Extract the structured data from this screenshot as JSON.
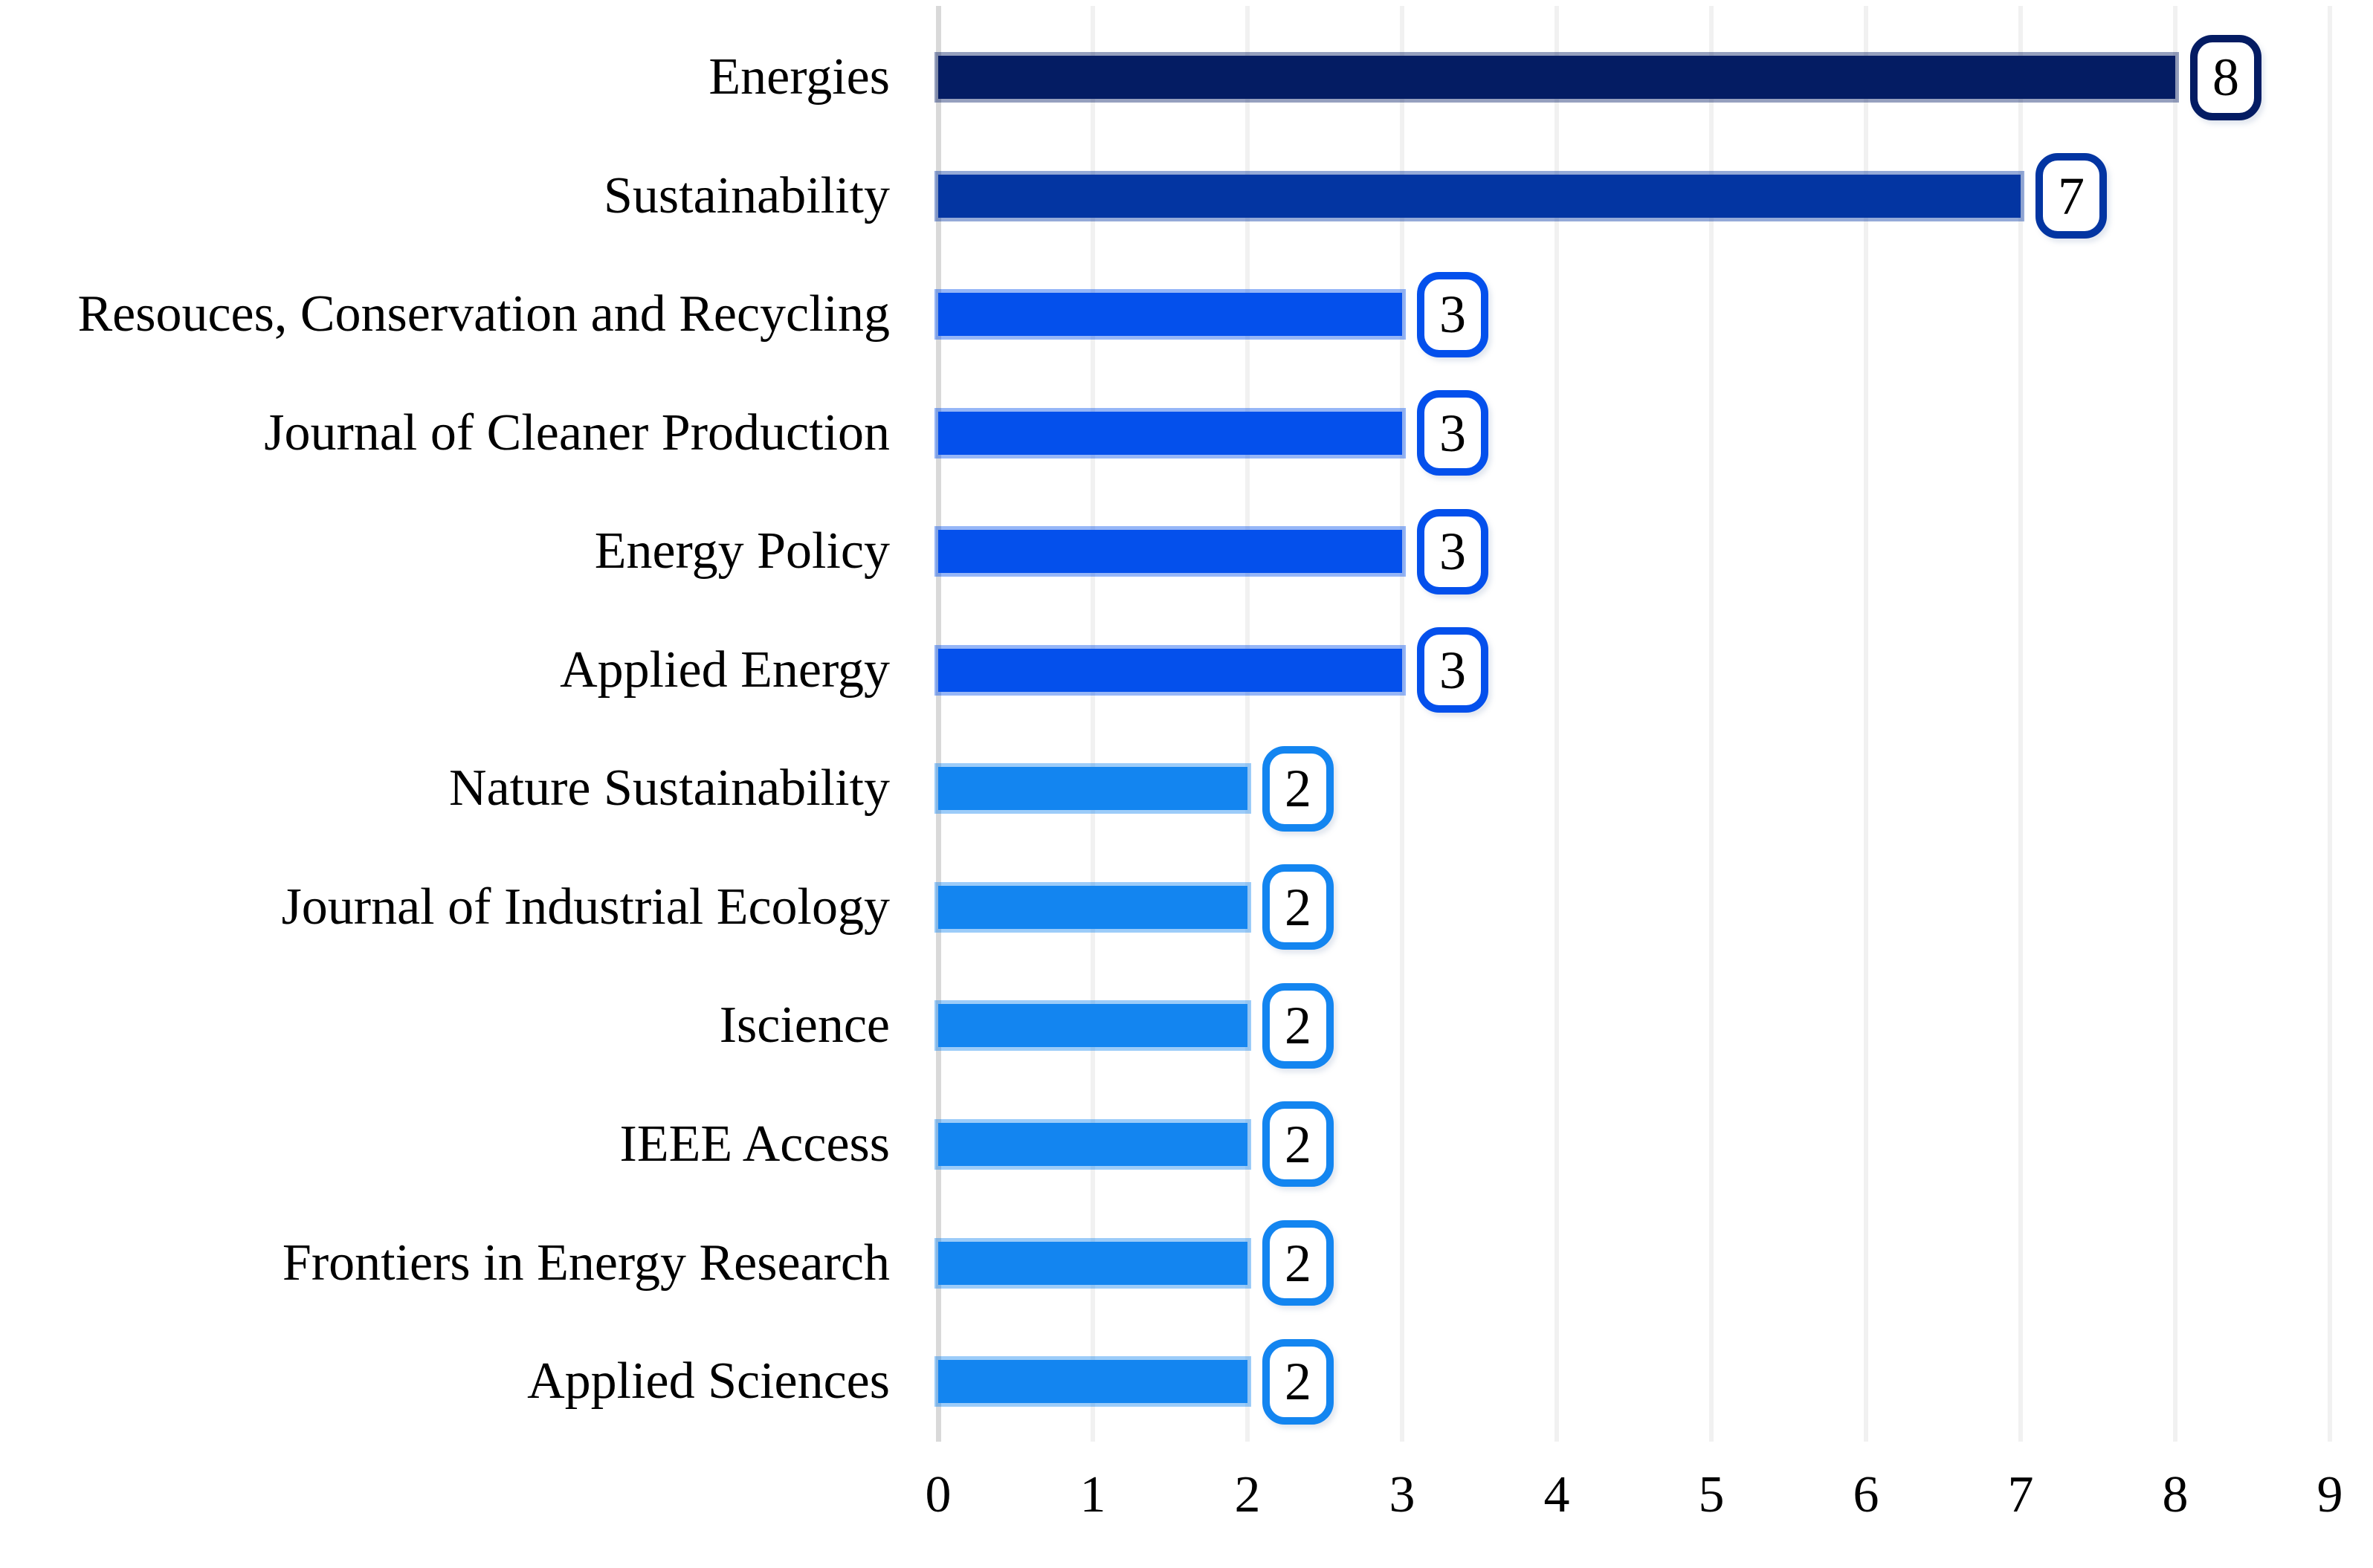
{
  "chart_data": {
    "type": "bar",
    "orientation": "horizontal",
    "title": "",
    "subtitle": "",
    "xlabel": "",
    "ylabel": "",
    "xlim": [
      0,
      9
    ],
    "x_ticks": [
      "0",
      "1",
      "2",
      "3",
      "4",
      "5",
      "6",
      "7",
      "8",
      "9"
    ],
    "grid": "vertical gridlines on, no horizontal gridlines, no axis titles",
    "legend_position": "none",
    "categories": [
      "Energies",
      "Sustainability",
      "Resouces, Conservation and Recycling",
      "Journal of Cleaner Production",
      "Energy Policy",
      "Applied Energy",
      "Nature Sustainability",
      "Journal of Industrial Ecology",
      "Iscience",
      "IEEE Access",
      "Frontiers in Energy Research",
      "Applied Sciences"
    ],
    "values": [
      8,
      7,
      3,
      3,
      3,
      3,
      2,
      2,
      2,
      2,
      2,
      2
    ],
    "data_labels": [
      "8",
      "7",
      "3",
      "3",
      "3",
      "3",
      "2",
      "2",
      "2",
      "2",
      "2",
      "2"
    ],
    "bar_colors": [
      "#041c63",
      "#0335a2",
      "#0450ec",
      "#0450ec",
      "#0450ec",
      "#0450ec",
      "#1385f0",
      "#1385f0",
      "#1385f0",
      "#1385f0",
      "#1385f0",
      "#1385f0"
    ],
    "data_label_style": {
      "shape": "rounded rectangle callout",
      "fill": "#ffffff",
      "text_color": "#000000",
      "border_matches_bar_color": true
    }
  },
  "colors": {
    "background": "#ffffff",
    "axis_baseline_gridline": "#d9d9d9",
    "gridline": "#f1f1f1",
    "category_text": "#000000",
    "tick_text": "#000000"
  }
}
